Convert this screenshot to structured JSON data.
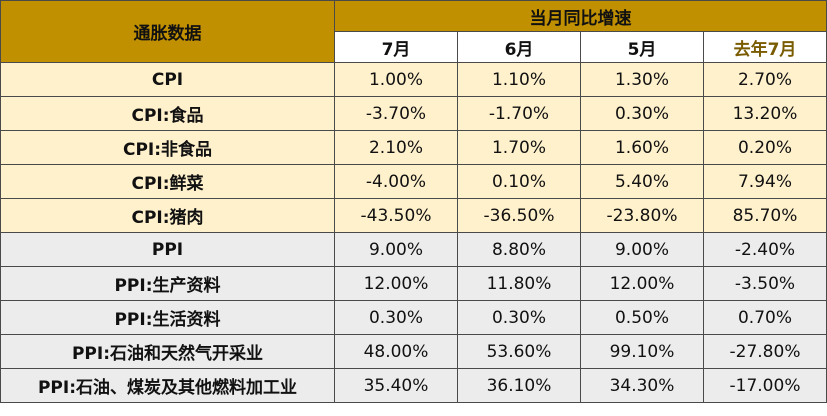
{
  "table": {
    "corner_label": "通胀数据",
    "group_header": "当月同比增速",
    "columns": [
      "7月",
      "6月",
      "5月",
      "去年7月"
    ],
    "rows": [
      {
        "label": "CPI",
        "values": [
          "1.00%",
          "1.10%",
          "1.30%",
          "2.70%"
        ],
        "group": "cpi"
      },
      {
        "label": "CPI:食品",
        "values": [
          "-3.70%",
          "-1.70%",
          "0.30%",
          "13.20%"
        ],
        "group": "cpi"
      },
      {
        "label": "CPI:非食品",
        "values": [
          "2.10%",
          "1.70%",
          "1.60%",
          "0.20%"
        ],
        "group": "cpi"
      },
      {
        "label": "CPI:鲜菜",
        "values": [
          "-4.00%",
          "0.10%",
          "5.40%",
          "7.94%"
        ],
        "group": "cpi"
      },
      {
        "label": "CPI:猪肉",
        "values": [
          "-43.50%",
          "-36.50%",
          "-23.80%",
          "85.70%"
        ],
        "group": "cpi"
      },
      {
        "label": "PPI",
        "values": [
          "9.00%",
          "8.80%",
          "9.00%",
          "-2.40%"
        ],
        "group": "ppi"
      },
      {
        "label": "PPI:生产资料",
        "values": [
          "12.00%",
          "11.80%",
          "12.00%",
          "-3.50%"
        ],
        "group": "ppi"
      },
      {
        "label": "PPI:生活资料",
        "values": [
          "0.30%",
          "0.30%",
          "0.50%",
          "0.70%"
        ],
        "group": "ppi"
      },
      {
        "label": "PPI:石油和天然气开采业",
        "values": [
          "48.00%",
          "53.60%",
          "99.10%",
          "-27.80%"
        ],
        "group": "ppi"
      },
      {
        "label": "PPI:石油、煤炭及其他燃料加工业",
        "values": [
          "35.40%",
          "36.10%",
          "34.30%",
          "-17.00%"
        ],
        "group": "ppi"
      }
    ]
  },
  "colors": {
    "header_gold": "#c09000",
    "cpi_row_bg": "#fff1cc",
    "ppi_row_bg": "#ececec"
  }
}
